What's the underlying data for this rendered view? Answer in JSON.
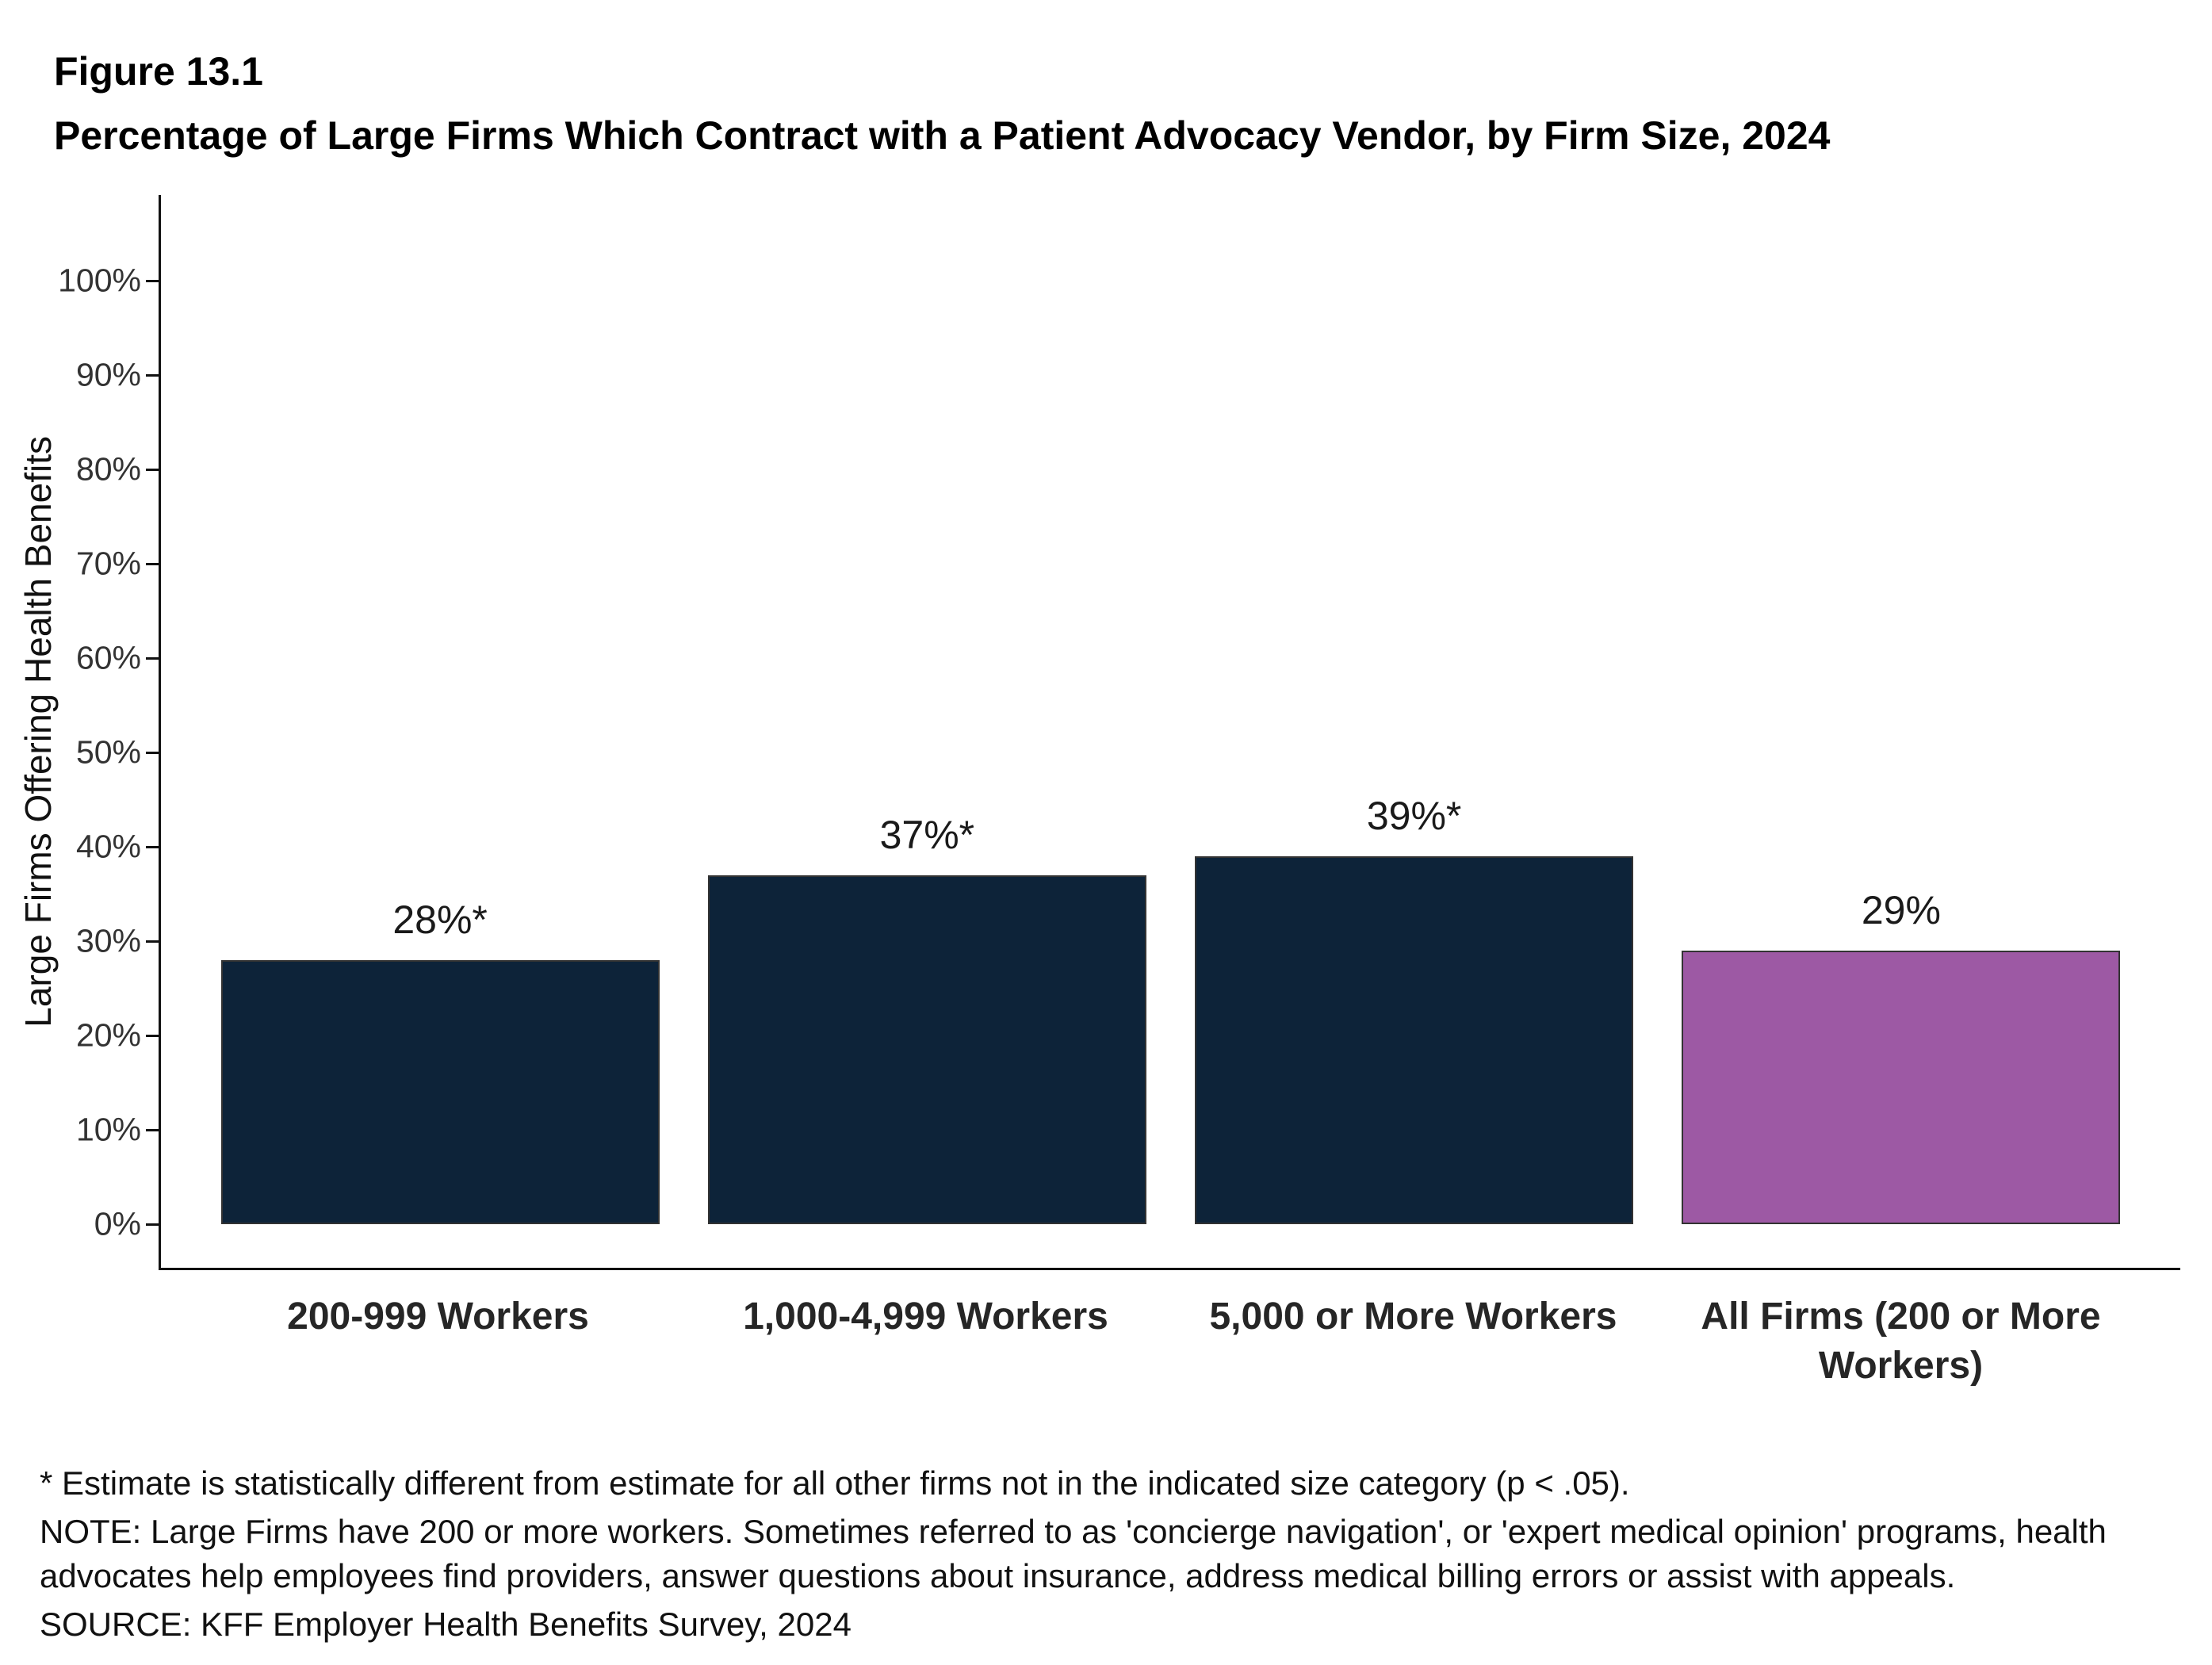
{
  "figure": {
    "number": "Figure 13.1",
    "title": "Percentage of Large Firms Which Contract with a Patient Advocacy Vendor, by Firm Size, 2024"
  },
  "chart_data": {
    "type": "bar",
    "title": "Percentage of Large Firms Which Contract with a Patient Advocacy Vendor, by Firm Size, 2024",
    "categories": [
      "200-999 Workers",
      "1,000-4,999 Workers",
      "5,000 or More Workers",
      "All Firms (200 or More Workers)"
    ],
    "values": [
      28,
      37,
      39,
      29
    ],
    "bar_labels": [
      "28%*",
      "37%*",
      "39%*",
      "29%"
    ],
    "bar_colors": [
      "#0d2339",
      "#0d2339",
      "#0d2339",
      "#9d59a4"
    ],
    "xlabel": "",
    "ylabel": "Large Firms Offering Health Benefits",
    "ylim": [
      0,
      100
    ],
    "ytick_values": [
      0,
      10,
      20,
      30,
      40,
      50,
      60,
      70,
      80,
      90,
      100
    ],
    "ytick_labels": [
      "0%",
      "10%",
      "20%",
      "30%",
      "40%",
      "50%",
      "60%",
      "70%",
      "80%",
      "90%",
      "100%"
    ],
    "grid": false,
    "legend": false
  },
  "footnotes": {
    "significance": "* Estimate is statistically different from estimate for all other firms not in the indicated size category (p < .05).",
    "note": "NOTE: Large Firms have 200 or more workers.  Sometimes referred to as 'concierge navigation', or 'expert medical opinion' programs, health advocates help employees find providers, answer questions about insurance, address medical billing errors or assist with appeals.",
    "source": "SOURCE: KFF Employer Health Benefits Survey, 2024"
  }
}
